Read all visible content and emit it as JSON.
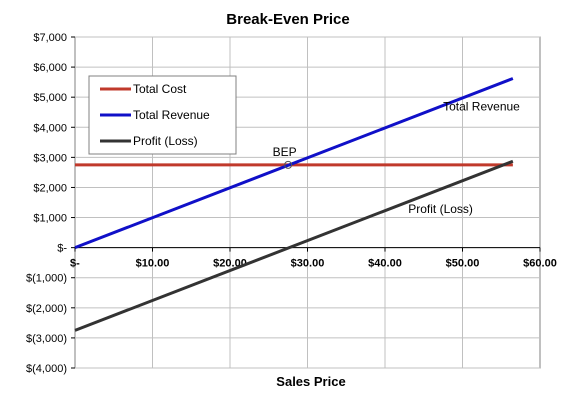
{
  "chart_data": {
    "type": "line",
    "title": "Break-Even Price",
    "xlabel": "Sales Price",
    "ylabel": "",
    "xlim": [
      0,
      60
    ],
    "ylim": [
      -4000,
      7000
    ],
    "x_ticks": [
      {
        "value": 0,
        "label": "$-"
      },
      {
        "value": 10,
        "label": "$10.00"
      },
      {
        "value": 20,
        "label": "$20.00"
      },
      {
        "value": 30,
        "label": "$30.00"
      },
      {
        "value": 40,
        "label": "$40.00"
      },
      {
        "value": 50,
        "label": "$50.00"
      },
      {
        "value": 60,
        "label": "$60.00"
      }
    ],
    "y_ticks": [
      {
        "value": 7000,
        "label": "$7,000"
      },
      {
        "value": 6000,
        "label": "$6,000"
      },
      {
        "value": 5000,
        "label": "$5,000"
      },
      {
        "value": 4000,
        "label": "$4,000"
      },
      {
        "value": 3000,
        "label": "$3,000"
      },
      {
        "value": 2000,
        "label": "$2,000"
      },
      {
        "value": 1000,
        "label": "$1,000"
      },
      {
        "value": 0,
        "label": "$-"
      },
      {
        "value": -1000,
        "label": "$(1,000)"
      },
      {
        "value": -2000,
        "label": "$(2,000)"
      },
      {
        "value": -3000,
        "label": "$(3,000)"
      },
      {
        "value": -4000,
        "label": "$(4,000)"
      }
    ],
    "grid": true,
    "legend_position": "top-left",
    "series": [
      {
        "name": "Total Cost",
        "color": "#c0392b",
        "x": [
          0,
          56.5
        ],
        "values": [
          2750,
          2750
        ]
      },
      {
        "name": "Total Revenue",
        "color": "#1010c8",
        "x": [
          0,
          56.5
        ],
        "values": [
          0,
          5620
        ]
      },
      {
        "name": "Profit (Loss)",
        "color": "#333333",
        "x": [
          0,
          56.5
        ],
        "values": [
          -2750,
          2870
        ]
      }
    ],
    "annotations": [
      {
        "text": "Total Revenue",
        "x": 47.5,
        "y": 4550
      },
      {
        "text": "Profit (Loss)",
        "x": 43,
        "y": 1150
      },
      {
        "text": "BEP",
        "x": 25.5,
        "y": 3050
      }
    ],
    "break_even_point": {
      "x": 27.5,
      "y": 2750
    }
  }
}
